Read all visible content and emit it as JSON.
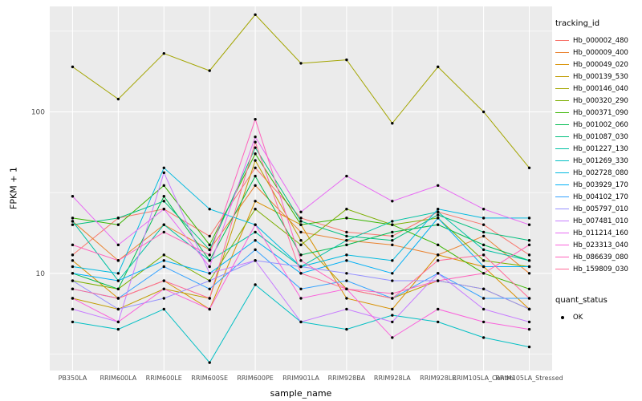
{
  "chart_data": {
    "type": "line",
    "title": "",
    "xlabel": "sample_name",
    "ylabel": "FPKM + 1",
    "y_scale": "log10",
    "ylim": [
      2.5,
      450
    ],
    "y_ticks": [
      10,
      100
    ],
    "y_minor": [
      3.162,
      31.62,
      316.2
    ],
    "grid": true,
    "panel_bg": "#EBEBEB",
    "grid_color": "#FFFFFF",
    "point_color": "#000000",
    "categories": [
      "PB350LA",
      "RRIM600LA",
      "RRIM600LE",
      "RRIM600SE",
      "RRIM600PE",
      "RRIM901LA",
      "RRIM928BA",
      "RRIM928LA",
      "RRIM928LE",
      "RRIM105LA_Control",
      "RRIM105LA_Stressed"
    ],
    "legend": {
      "color_title": "tracking_id",
      "shape_title": "quant_status",
      "shape_items": [
        {
          "label": "OK"
        }
      ]
    },
    "series": [
      {
        "name": "Hb_000002_480",
        "color": "#F8766D",
        "values": [
          13,
          22,
          25,
          17,
          45,
          22,
          18,
          17,
          24,
          20,
          13
        ]
      },
      {
        "name": "Hb_000009_400",
        "color": "#EA8331",
        "values": [
          21,
          12,
          20,
          14,
          35,
          18,
          16,
          15,
          13,
          17,
          10
        ]
      },
      {
        "name": "Hb_000049_020",
        "color": "#D89000",
        "values": [
          12,
          7,
          9,
          6,
          28,
          20,
          7,
          6,
          13,
          11,
          6
        ]
      },
      {
        "name": "Hb_000139_530",
        "color": "#C09B00",
        "values": [
          7,
          6,
          8,
          7,
          50,
          16,
          8,
          7,
          9,
          8,
          6
        ]
      },
      {
        "name": "Hb_000146_040",
        "color": "#A3A500",
        "values": [
          190,
          120,
          230,
          180,
          400,
          200,
          210,
          85,
          190,
          100,
          45
        ]
      },
      {
        "name": "Hb_000320_290",
        "color": "#7CAE00",
        "values": [
          9,
          8,
          13,
          9,
          25,
          15,
          25,
          20,
          22,
          12,
          11
        ]
      },
      {
        "name": "Hb_000371_090",
        "color": "#39B600",
        "values": [
          22,
          20,
          35,
          15,
          55,
          20,
          22,
          20,
          15,
          10,
          8
        ]
      },
      {
        "name": "Hb_001002_060",
        "color": "#00BB4E",
        "values": [
          10,
          8,
          30,
          12,
          40,
          13,
          15,
          18,
          20,
          15,
          12
        ]
      },
      {
        "name": "Hb_001087_030",
        "color": "#00BF7D",
        "values": [
          20,
          22,
          28,
          14,
          60,
          21,
          17,
          16,
          23,
          18,
          16
        ]
      },
      {
        "name": "Hb_001227_130",
        "color": "#00C1A3",
        "values": [
          21,
          9,
          20,
          12,
          18,
          11,
          16,
          21,
          24,
          14,
          12
        ]
      },
      {
        "name": "Hb_001269_330",
        "color": "#00BFC4",
        "values": [
          5,
          4.5,
          6,
          2.8,
          8.5,
          5,
          4.5,
          5.5,
          5,
          4,
          3.5
        ]
      },
      {
        "name": "Hb_002728_080",
        "color": "#00BAE0",
        "values": [
          11,
          10,
          45,
          25,
          20,
          11,
          13,
          12,
          25,
          22,
          22
        ]
      },
      {
        "name": "Hb_003929_170",
        "color": "#00B0F6",
        "values": [
          10,
          9,
          12,
          10,
          16,
          10,
          12,
          10,
          22,
          11,
          11
        ]
      },
      {
        "name": "Hb_004102_170",
        "color": "#35A2FF",
        "values": [
          8,
          7,
          11,
          8,
          14,
          8,
          9,
          7,
          10,
          7,
          7
        ]
      },
      {
        "name": "Hb_005797_010",
        "color": "#9590FF",
        "values": [
          9,
          6,
          7,
          9,
          12,
          11,
          10,
          9,
          9,
          8,
          6
        ]
      },
      {
        "name": "Hb_007481_010",
        "color": "#C77CFF",
        "values": [
          6,
          5,
          42,
          10,
          12,
          5,
          6,
          5,
          10,
          6,
          5
        ]
      },
      {
        "name": "Hb_011214_160",
        "color": "#E76BF3",
        "values": [
          30,
          15,
          25,
          11,
          70,
          24,
          40,
          28,
          35,
          25,
          20
        ]
      },
      {
        "name": "Hb_023313_040",
        "color": "#FA62DB",
        "values": [
          7,
          5,
          8,
          6,
          20,
          7,
          8,
          4,
          6,
          5,
          4.5
        ]
      },
      {
        "name": "Hb_086639_080",
        "color": "#FF62BC",
        "values": [
          15,
          12,
          18,
          13,
          90,
          12,
          8,
          7.5,
          9,
          10,
          15
        ]
      },
      {
        "name": "Hb_159809_030",
        "color": "#FF6A98",
        "values": [
          8,
          7,
          9,
          7,
          65,
          10,
          8,
          7,
          12,
          13,
          7
        ]
      }
    ]
  }
}
